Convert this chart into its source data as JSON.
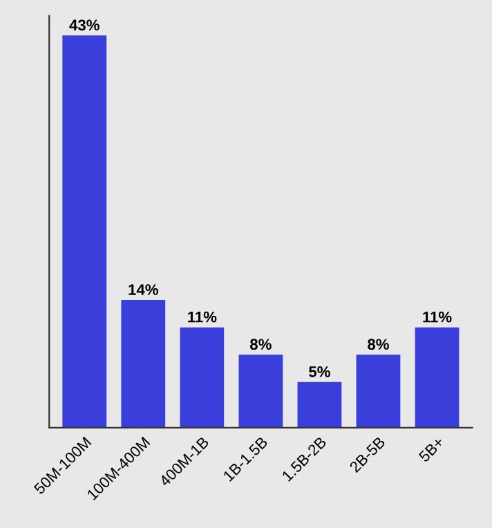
{
  "chart_data": {
    "type": "bar",
    "categories": [
      "50M-100M",
      "100M-400M",
      "400M-1B",
      "1B-1.5B",
      "1.5B-2B",
      "2B-5B",
      "5B+"
    ],
    "values": [
      43,
      14,
      11,
      8,
      5,
      8,
      11
    ],
    "value_labels": [
      "43%",
      "14%",
      "11%",
      "8%",
      "5%",
      "8%",
      "11%"
    ],
    "color": "#3a3fdc",
    "grid": false
  }
}
